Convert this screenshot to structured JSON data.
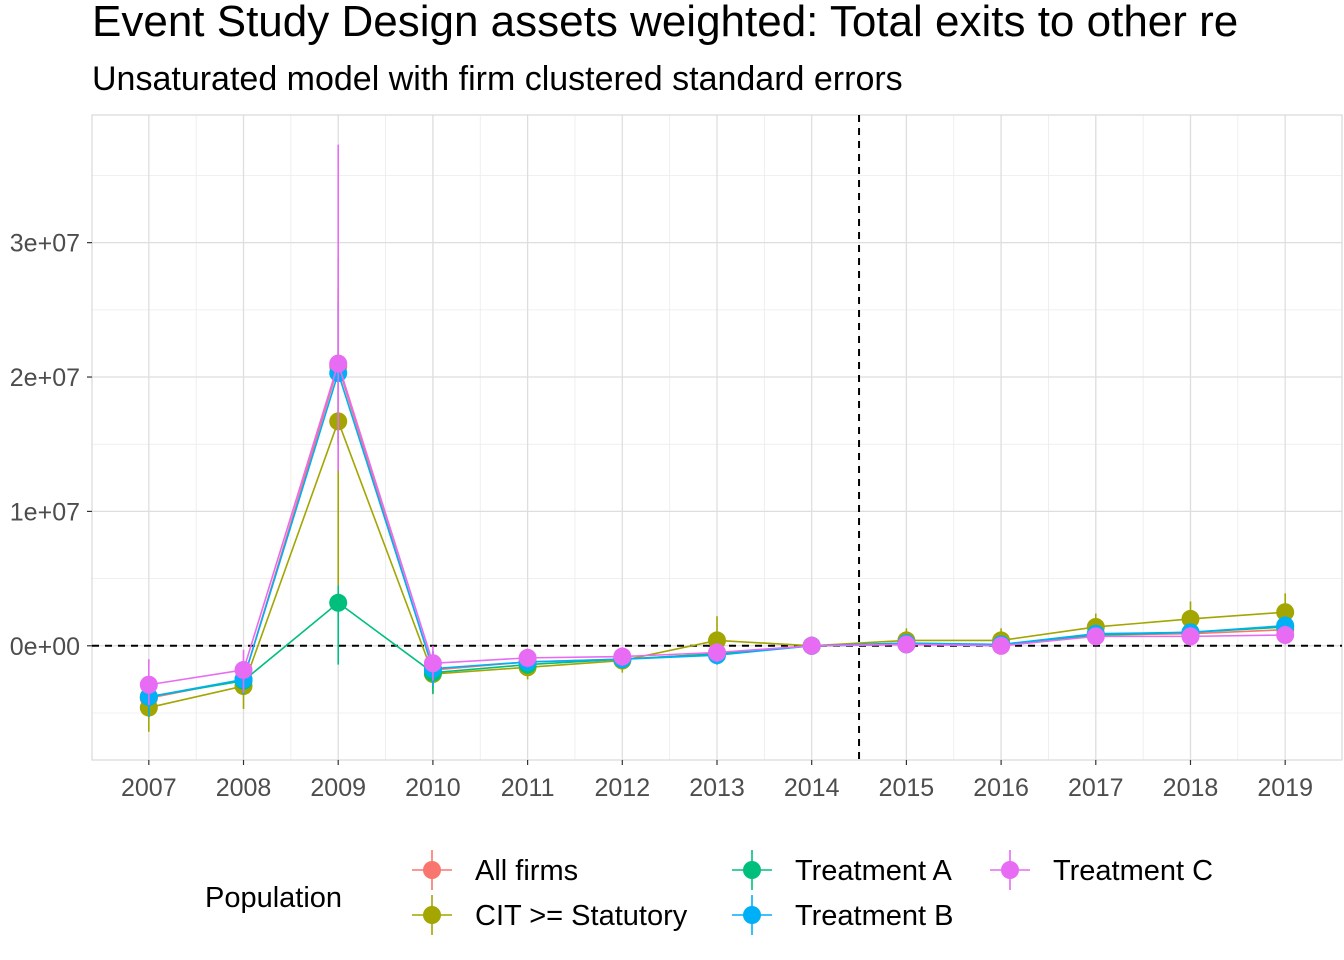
{
  "chart_data": {
    "type": "line",
    "title": "Event Study Design assets weighted: Total exits to other re",
    "subtitle": "Unsaturated model with firm clustered standard errors",
    "xlabel": "",
    "ylabel": "",
    "x": [
      2007,
      2008,
      2009,
      2010,
      2011,
      2012,
      2013,
      2014,
      2015,
      2016,
      2017,
      2018,
      2019
    ],
    "x_tick_labels": [
      "2007",
      "2008",
      "2009",
      "2010",
      "2011",
      "2012",
      "2013",
      "2014",
      "2015",
      "2016",
      "2017",
      "2018",
      "2019"
    ],
    "y_tick_values": [
      0,
      10000000,
      20000000,
      30000000
    ],
    "y_tick_labels": [
      "0e+00",
      "1e+07",
      "2e+07",
      "3e+07"
    ],
    "xlim": [
      2006.4,
      2019.6
    ],
    "ylim": [
      -8500000,
      39500000
    ],
    "grid": true,
    "reference_lines": {
      "horizontal_y": 0,
      "vertical_x": 2014.5,
      "style": "dashed"
    },
    "legend": {
      "title": "Population",
      "position": "bottom"
    },
    "series": [
      {
        "name": "All firms",
        "color": "#F8766D",
        "values": [
          -3900000,
          -2500000,
          20800000,
          -1800000,
          -1200000,
          -1000000,
          -600000,
          0,
          200000,
          0,
          800000,
          900000,
          1200000
        ],
        "ci_low": [
          -5400000,
          -3700000,
          15000000,
          -3100000,
          -1900000,
          -1700000,
          -1300000,
          0,
          -300000,
          -600000,
          200000,
          200000,
          400000
        ],
        "ci_high": [
          -2400000,
          -1300000,
          26600000,
          -500000,
          -500000,
          -300000,
          100000,
          0,
          700000,
          600000,
          1400000,
          1600000,
          2000000
        ]
      },
      {
        "name": "CIT >= Statutory",
        "color": "#A3A500",
        "values": [
          -4600000,
          -3000000,
          16700000,
          -2100000,
          -1600000,
          -1100000,
          400000,
          0,
          400000,
          400000,
          1400000,
          2000000,
          2500000
        ],
        "ci_low": [
          -6400000,
          -4700000,
          4500000,
          -3500000,
          -2500000,
          -2000000,
          -1400000,
          0,
          -500000,
          -500000,
          400000,
          700000,
          1100000
        ],
        "ci_high": [
          -2800000,
          -1300000,
          28900000,
          -700000,
          -700000,
          -200000,
          2200000,
          0,
          1300000,
          1300000,
          2400000,
          3300000,
          3900000
        ]
      },
      {
        "name": "Treatment A",
        "color": "#00BF7D",
        "values": [
          -3800000,
          -2600000,
          3200000,
          -2000000,
          -1400000,
          -1000000,
          -600000,
          0,
          100000,
          100000,
          800000,
          1000000,
          1400000
        ],
        "ci_low": [
          -5000000,
          -3600000,
          -1400000,
          -3600000,
          -2100000,
          -1700000,
          -1300000,
          0,
          -400000,
          -400000,
          200000,
          400000,
          700000
        ],
        "ci_high": [
          -2600000,
          -1600000,
          4500000,
          -400000,
          -700000,
          -300000,
          100000,
          0,
          600000,
          600000,
          1400000,
          1600000,
          2100000
        ]
      },
      {
        "name": "Treatment B",
        "color": "#00B0F6",
        "values": [
          -3800000,
          -2500000,
          20300000,
          -1700000,
          -1200000,
          -1000000,
          -700000,
          0,
          200000,
          100000,
          900000,
          1000000,
          1500000
        ],
        "ci_low": [
          -5300000,
          -3600000,
          15000000,
          -3000000,
          -1900000,
          -1700000,
          -1400000,
          0,
          -300000,
          -400000,
          300000,
          400000,
          800000
        ],
        "ci_high": [
          -2300000,
          -1400000,
          25600000,
          -400000,
          -500000,
          -300000,
          0,
          0,
          700000,
          600000,
          1500000,
          1600000,
          2200000
        ]
      },
      {
        "name": "Treatment C",
        "color": "#E76BF3",
        "values": [
          -2900000,
          -1800000,
          21000000,
          -1300000,
          -900000,
          -800000,
          -500000,
          0,
          100000,
          0,
          700000,
          700000,
          800000
        ],
        "ci_low": [
          -4400000,
          -3500000,
          13000000,
          -2600000,
          -1600000,
          -1500000,
          -1200000,
          0,
          -400000,
          -500000,
          100000,
          0,
          100000
        ],
        "ci_high": [
          -1000000,
          -300000,
          37300000,
          0,
          -200000,
          -100000,
          200000,
          0,
          600000,
          500000,
          1300000,
          1400000,
          1500000
        ]
      }
    ]
  }
}
